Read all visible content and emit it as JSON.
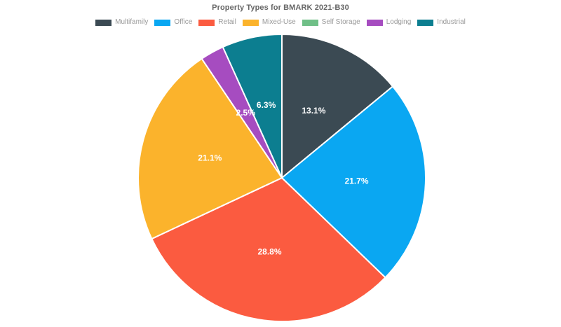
{
  "chart_data": {
    "type": "pie",
    "title": "Property Types for BMARK 2021-B30",
    "legend_position": "top",
    "categories": [
      "Multifamily",
      "Office",
      "Retail",
      "Mixed-Use",
      "Self Storage",
      "Lodging",
      "Industrial"
    ],
    "values": [
      13.1,
      21.7,
      28.8,
      21.1,
      0,
      2.5,
      6.3
    ],
    "slice_labels": [
      "13.1%",
      "21.7%",
      "28.8%",
      "21.1%",
      "",
      "2.5%",
      "6.3%"
    ],
    "colors": [
      "#3B4A53",
      "#0AA7F2",
      "#FB5B40",
      "#FBB32C",
      "#6FBF87",
      "#A64CC0",
      "#0C7E90"
    ],
    "title_color": "#666666",
    "legend_text_color": "#999999",
    "slice_label_color": "#ffffff",
    "slice_border_color": "#ffffff",
    "start_angle_deg": -90,
    "direction": "clockwise",
    "label_radius_fraction": 0.52
  }
}
